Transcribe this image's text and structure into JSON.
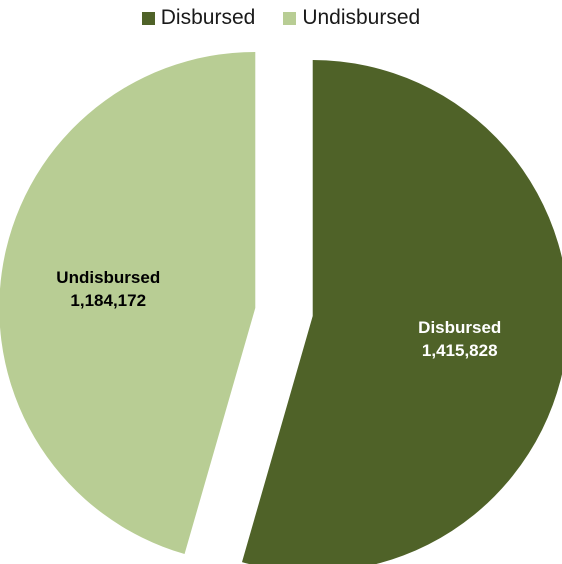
{
  "chart_data": {
    "type": "pie",
    "title": "",
    "legend_position": "top",
    "slices": [
      {
        "name": "Disbursed",
        "value": 1415828,
        "value_label": "1,415,828",
        "color": "#4f6228",
        "label_color": "#ffffff",
        "exploded": true
      },
      {
        "name": "Undisbursed",
        "value": 1184172,
        "value_label": "1,184,172",
        "color": "#b8cd94",
        "label_color": "#000000",
        "exploded": true
      }
    ]
  }
}
